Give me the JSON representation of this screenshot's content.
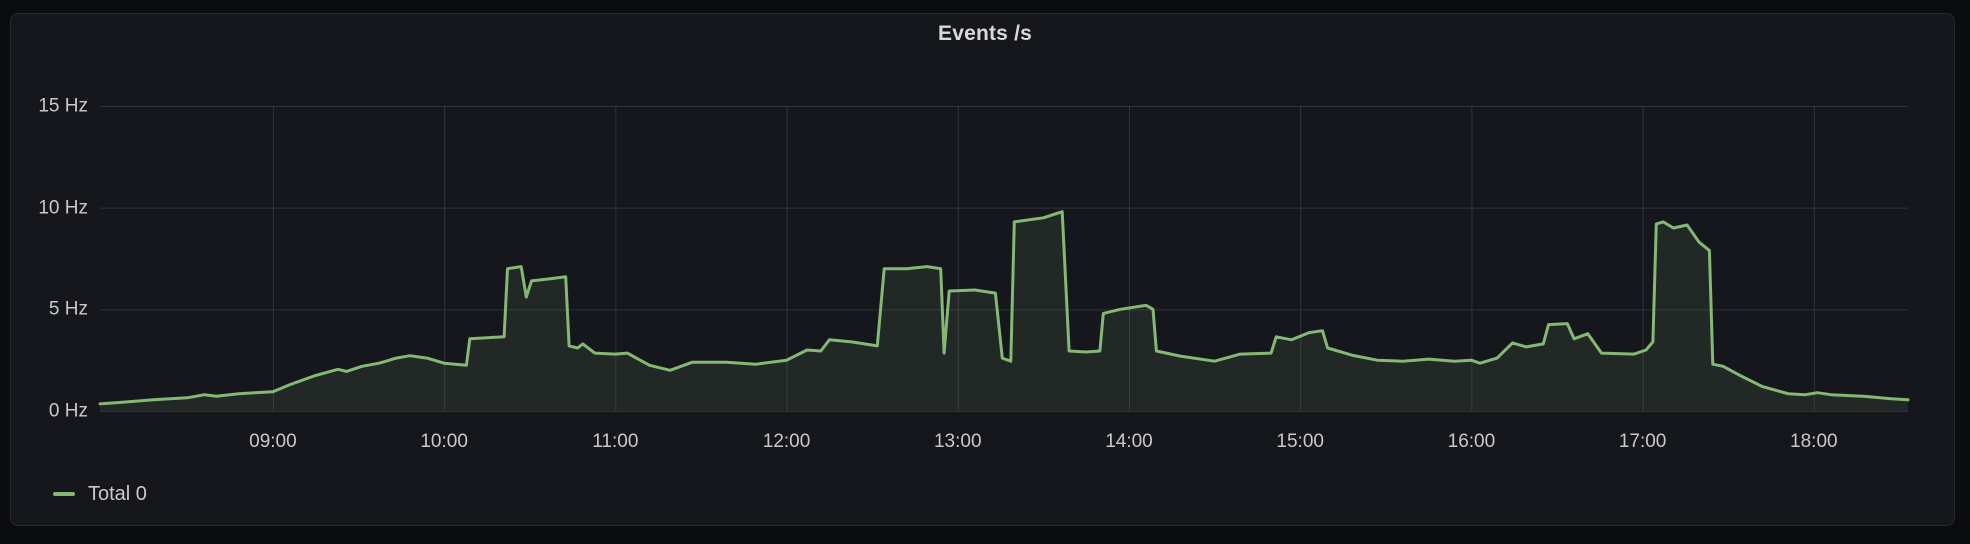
{
  "panel": {
    "title": "Events /s"
  },
  "legend": {
    "items": [
      {
        "label": "Total 0",
        "color": "#84B873"
      }
    ]
  },
  "colors": {
    "page_bg": "#0B0C0E",
    "panel_bg": "#16171D",
    "grid": "rgba(204,204,220,0.15)",
    "axis_text": "#C8C9CD",
    "title_text": "#D8D9DA",
    "series_green": "#84B873"
  },
  "chart_data": {
    "type": "area",
    "title": "Events /s",
    "xlabel": "",
    "ylabel": "",
    "unit": "Hz",
    "grid": true,
    "legend_position": "bottom-left",
    "x_range_hours": [
      7.99,
      18.55
    ],
    "ylim": [
      0,
      15
    ],
    "y_ticks": [
      0,
      5,
      10,
      15
    ],
    "y_tick_labels": [
      "0 Hz",
      "5 Hz",
      "10 Hz",
      "15 Hz"
    ],
    "x_tick_hours": [
      9,
      10,
      11,
      12,
      13,
      14,
      15,
      16,
      17,
      18
    ],
    "x_tick_labels": [
      "09:00",
      "10:00",
      "11:00",
      "12:00",
      "13:00",
      "14:00",
      "15:00",
      "16:00",
      "17:00",
      "18:00"
    ],
    "series": [
      {
        "name": "Total 0",
        "color": "#84B873",
        "fill_opacity": 0.11,
        "line_width": 3,
        "points_time_hz": [
          [
            7.99,
            0.35
          ],
          [
            8.15,
            0.45
          ],
          [
            8.3,
            0.55
          ],
          [
            8.5,
            0.65
          ],
          [
            8.6,
            0.8
          ],
          [
            8.67,
            0.73
          ],
          [
            8.8,
            0.85
          ],
          [
            9.0,
            0.95
          ],
          [
            9.1,
            1.3
          ],
          [
            9.25,
            1.75
          ],
          [
            9.38,
            2.05
          ],
          [
            9.43,
            1.95
          ],
          [
            9.52,
            2.2
          ],
          [
            9.62,
            2.35
          ],
          [
            9.72,
            2.6
          ],
          [
            9.8,
            2.72
          ],
          [
            9.9,
            2.6
          ],
          [
            10.0,
            2.35
          ],
          [
            10.13,
            2.25
          ],
          [
            10.15,
            3.55
          ],
          [
            10.35,
            3.65
          ],
          [
            10.37,
            7.0
          ],
          [
            10.45,
            7.1
          ],
          [
            10.48,
            5.6
          ],
          [
            10.51,
            6.4
          ],
          [
            10.62,
            6.5
          ],
          [
            10.71,
            6.6
          ],
          [
            10.73,
            3.2
          ],
          [
            10.78,
            3.1
          ],
          [
            10.81,
            3.3
          ],
          [
            10.88,
            2.85
          ],
          [
            11.0,
            2.8
          ],
          [
            11.07,
            2.85
          ],
          [
            11.2,
            2.25
          ],
          [
            11.32,
            2.0
          ],
          [
            11.45,
            2.4
          ],
          [
            11.65,
            2.4
          ],
          [
            11.82,
            2.3
          ],
          [
            12.0,
            2.5
          ],
          [
            12.12,
            3.0
          ],
          [
            12.2,
            2.95
          ],
          [
            12.25,
            3.5
          ],
          [
            12.38,
            3.4
          ],
          [
            12.53,
            3.2
          ],
          [
            12.57,
            7.0
          ],
          [
            12.7,
            7.0
          ],
          [
            12.82,
            7.1
          ],
          [
            12.9,
            7.0
          ],
          [
            12.92,
            2.85
          ],
          [
            12.95,
            5.9
          ],
          [
            13.1,
            5.95
          ],
          [
            13.22,
            5.8
          ],
          [
            13.26,
            2.6
          ],
          [
            13.31,
            2.45
          ],
          [
            13.33,
            9.3
          ],
          [
            13.5,
            9.5
          ],
          [
            13.61,
            9.8
          ],
          [
            13.65,
            2.95
          ],
          [
            13.75,
            2.9
          ],
          [
            13.83,
            2.95
          ],
          [
            13.85,
            4.8
          ],
          [
            13.95,
            5.0
          ],
          [
            14.1,
            5.2
          ],
          [
            14.14,
            5.0
          ],
          [
            14.16,
            2.95
          ],
          [
            14.3,
            2.7
          ],
          [
            14.5,
            2.45
          ],
          [
            14.65,
            2.8
          ],
          [
            14.83,
            2.85
          ],
          [
            14.86,
            3.65
          ],
          [
            14.95,
            3.5
          ],
          [
            15.05,
            3.85
          ],
          [
            15.13,
            3.95
          ],
          [
            15.16,
            3.1
          ],
          [
            15.3,
            2.75
          ],
          [
            15.45,
            2.5
          ],
          [
            15.6,
            2.45
          ],
          [
            15.75,
            2.55
          ],
          [
            15.9,
            2.45
          ],
          [
            16.0,
            2.5
          ],
          [
            16.05,
            2.35
          ],
          [
            16.15,
            2.6
          ],
          [
            16.24,
            3.35
          ],
          [
            16.32,
            3.15
          ],
          [
            16.42,
            3.3
          ],
          [
            16.45,
            4.25
          ],
          [
            16.56,
            4.3
          ],
          [
            16.6,
            3.55
          ],
          [
            16.68,
            3.8
          ],
          [
            16.76,
            2.85
          ],
          [
            16.95,
            2.8
          ],
          [
            17.02,
            3.0
          ],
          [
            17.06,
            3.4
          ],
          [
            17.08,
            9.2
          ],
          [
            17.12,
            9.3
          ],
          [
            17.18,
            9.0
          ],
          [
            17.26,
            9.15
          ],
          [
            17.33,
            8.3
          ],
          [
            17.39,
            7.9
          ],
          [
            17.41,
            2.3
          ],
          [
            17.47,
            2.2
          ],
          [
            17.58,
            1.7
          ],
          [
            17.7,
            1.2
          ],
          [
            17.85,
            0.85
          ],
          [
            17.95,
            0.8
          ],
          [
            18.02,
            0.9
          ],
          [
            18.1,
            0.8
          ],
          [
            18.3,
            0.72
          ],
          [
            18.45,
            0.6
          ],
          [
            18.55,
            0.55
          ]
        ]
      }
    ]
  }
}
